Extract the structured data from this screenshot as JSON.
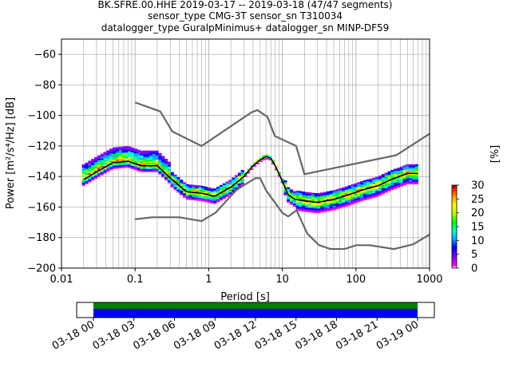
{
  "title_lines": [
    "BK.SFRE.00.HHE   2019-03-17 -- 2019-03-18  (47/47 segments)",
    "sensor_type CMG-3T sensor_sn T310034",
    "datalogger_type GuralpMinimus+ datalogger_sn MINP-DF59"
  ],
  "chart_data": {
    "type": "heatmap",
    "title": "BK.SFRE.00.HHE   2019-03-17 -- 2019-03-18  (47/47 segments)",
    "subtitle": [
      "sensor_type CMG-3T sensor_sn T310034",
      "datalogger_type GuralpMinimus+ datalogger_sn MINP-DF59"
    ],
    "xlabel": "Period [s]",
    "ylabel": "Power [m²/s⁴/Hz] [dB]",
    "xscale": "log",
    "xlim": [
      0.01,
      1000
    ],
    "ylim": [
      -200,
      -50
    ],
    "xticks": [
      0.01,
      0.1,
      1,
      10,
      100,
      1000
    ],
    "xtick_labels": [
      "0.01",
      "0.1",
      "1",
      "10",
      "100",
      "1000"
    ],
    "yticks": [
      -200,
      -180,
      -160,
      -140,
      -120,
      -100,
      -80,
      -60
    ],
    "ytick_labels": [
      "−200",
      "−180",
      "−160",
      "−140",
      "−120",
      "−100",
      "−80",
      "−60"
    ],
    "grid": true,
    "colorbar": {
      "label": "[%]",
      "ticks": [
        0,
        5,
        10,
        15,
        20,
        25,
        30
      ],
      "tick_labels": [
        "0",
        "5",
        "10",
        "15",
        "20",
        "25",
        "30"
      ],
      "range": [
        0,
        30
      ],
      "colormap": [
        "#ff00ff",
        "#8800ff",
        "#0000ff",
        "#00aaff",
        "#00ffcc",
        "#00ff00",
        "#aaff00",
        "#ffff00",
        "#ffaa00",
        "#ff3300",
        "#990000"
      ]
    },
    "mode_curve": {
      "period": [
        0.02,
        0.03,
        0.05,
        0.08,
        0.12,
        0.2,
        0.3,
        0.5,
        0.8,
        1.2,
        2,
        3,
        4,
        5,
        6,
        7,
        8,
        10,
        12,
        15,
        20,
        30,
        50,
        80,
        120,
        200,
        300,
        500,
        700
      ],
      "power": [
        -142,
        -137,
        -131,
        -130,
        -133,
        -133,
        -141,
        -150,
        -151,
        -153,
        -147,
        -140,
        -133,
        -129,
        -127,
        -128,
        -133,
        -143,
        -152,
        -155,
        -156,
        -157,
        -155,
        -152,
        -149,
        -146,
        -142,
        -138,
        -138
      ]
    },
    "nhnm": {
      "period": [
        0.1,
        0.22,
        0.32,
        0.8,
        3.8,
        4.6,
        6.3,
        7.9,
        15.4,
        20,
        354.8,
        1000
      ],
      "power": [
        -91.5,
        -97.4,
        -110.5,
        -120,
        -98,
        -96.5,
        -101,
        -113.5,
        -120,
        -138.5,
        -126,
        -112
      ]
    },
    "nlnm": {
      "period": [
        0.1,
        0.17,
        0.4,
        0.8,
        1.24,
        2.4,
        4.3,
        5.0,
        6.0,
        10,
        12,
        15.6,
        21.9,
        31.6,
        45,
        70,
        101,
        154,
        328,
        600,
        1000
      ],
      "power": [
        -168,
        -166.7,
        -166.7,
        -169.2,
        -163.7,
        -148.6,
        -141.1,
        -141.1,
        -149,
        -163.8,
        -166.2,
        -162.1,
        -177.5,
        -185,
        -187.5,
        -187.5,
        -185,
        -185,
        -187.5,
        -184.4,
        -178
      ]
    },
    "data_availability": {
      "xlabels": [
        "03-18 00",
        "03-18 03",
        "03-18 06",
        "03-18 09",
        "03-18 12",
        "03-18 15",
        "03-18 18",
        "03-18 21",
        "03-19 00"
      ],
      "bars": [
        {
          "color": "#008000",
          "start": "03-18 00",
          "end": "03-19 00"
        },
        {
          "color": "#0000ff",
          "start": "03-18 00",
          "end": "03-19 00"
        }
      ]
    }
  }
}
